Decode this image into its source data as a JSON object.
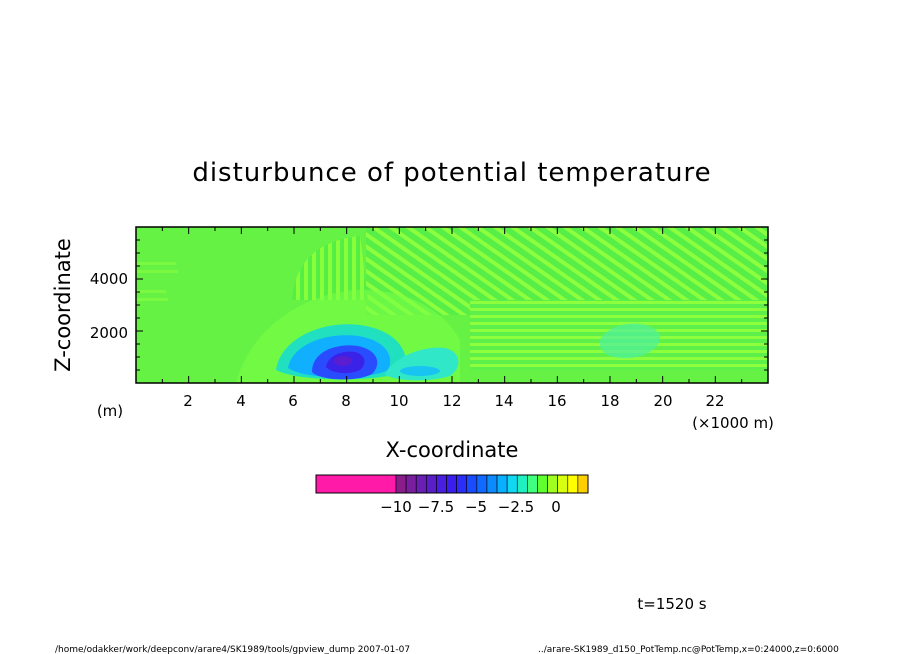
{
  "chart_data": {
    "type": "heatmap",
    "title": "disturbunce of potential temperature",
    "xlabel": "X-coordinate",
    "ylabel": "Z-coordinate",
    "x_unit": "(×1000 m)",
    "y_unit": "(m)",
    "xlim": [
      0,
      24
    ],
    "ylim": [
      0,
      6000
    ],
    "x_ticks": [
      "2",
      "4",
      "6",
      "8",
      "10",
      "12",
      "14",
      "16",
      "18",
      "20",
      "22"
    ],
    "y_ticks": [
      "2000",
      "4000"
    ],
    "colorbar": {
      "tick_labels": [
        "−10",
        "−7.5",
        "−5",
        "−2.5",
        "0"
      ],
      "colors": [
        "#ff1aa8",
        "#8a1c8c",
        "#7a1ea0",
        "#6a1fb4",
        "#5a1ec8",
        "#4a1ee0",
        "#3a1ef0",
        "#2a2ef8",
        "#1a4cff",
        "#106aff",
        "#0a8cff",
        "#08b0ff",
        "#10d8f0",
        "#20f0c0",
        "#40ff80",
        "#60ff30",
        "#a0ff20",
        "#d8ff10",
        "#ffff00",
        "#ffd000"
      ]
    },
    "anomaly_cores": [
      {
        "x": 7.8,
        "z": 900,
        "value": -7.5
      },
      {
        "x": 7.2,
        "z": 1100,
        "value": -4.0
      },
      {
        "x": 10.5,
        "z": 700,
        "value": -2.0
      },
      {
        "x": 11.6,
        "z": 950,
        "value": -1.5
      },
      {
        "x": 18.5,
        "z": 1500,
        "value": -0.8
      }
    ],
    "time_label": "t=1520 s",
    "footer_left": "/home/odakker/work/deepconv/arare4/SK1989/tools/gpview_dump   2007-01-07",
    "footer_right": "../arare-SK1989_d150_PotTemp.nc@PotTemp,x=0:24000,z=0:6000"
  }
}
